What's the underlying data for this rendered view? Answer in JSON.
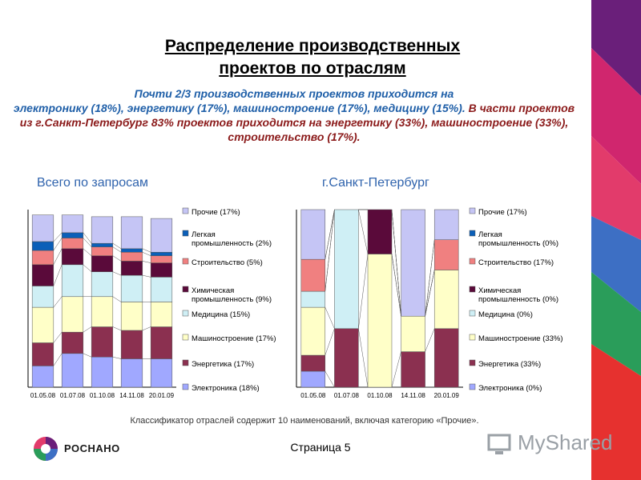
{
  "slide": {
    "title_line1": "Распределение производственных",
    "title_line2": "проектов по отраслям",
    "summary_blue1": "Почти 2/3 производственных проектов приходится на",
    "summary_blue2": "электронику (18%), энергетику (17%), машиностроение (17%), медицину (15%).",
    "summary_red": "В части проектов из г.Санкт-Петербург 83% проектов приходится на энергетику (33%), машиностроение (33%), строительство (17%).",
    "footnote": "Классификатор отраслей содержит 10 наименований, включая категорию «Прочие».",
    "page": "Страница 5",
    "logo_text": "РОСНАНО",
    "watermark": "MyShared"
  },
  "colors": {
    "Прочие": "#c5c5f5",
    "Легкая промышленность": "#0b5fb8",
    "Строительство": "#f08080",
    "Химическая промышленность": "#5a0a3a",
    "Медицина": "#cfeff5",
    "Машиностроение": "#ffffc8",
    "Энергетика": "#8b3050",
    "Электроника": "#a0a8ff"
  },
  "chart_data": [
    {
      "type": "bar",
      "stacked": true,
      "title": "Всего по запросам",
      "categories": [
        "01.05.08",
        "01.07.08",
        "01.10.08",
        "14.11.08",
        "20.01.09"
      ],
      "series": [
        {
          "name": "Электроника",
          "values": [
            12,
            19,
            17,
            16,
            16
          ]
        },
        {
          "name": "Энергетика",
          "values": [
            13,
            12,
            17,
            16,
            18
          ]
        },
        {
          "name": "Машиностроение",
          "values": [
            20,
            20,
            17,
            16,
            14
          ]
        },
        {
          "name": "Медицина",
          "values": [
            12,
            18,
            14,
            15,
            14
          ]
        },
        {
          "name": "Химическая промышленность",
          "values": [
            12,
            9,
            9,
            8,
            8
          ]
        },
        {
          "name": "Строительство",
          "values": [
            8,
            6,
            5,
            5,
            4
          ]
        },
        {
          "name": "Легкая промышленность",
          "values": [
            5,
            3,
            2,
            2,
            2
          ]
        },
        {
          "name": "Прочие",
          "values": [
            15,
            10,
            15,
            18,
            19
          ]
        }
      ],
      "legend": [
        "Прочие (17%)",
        "Легкая промышленность (2%)",
        "Строительство (5%)",
        "Химическая промышленность (9%)",
        "Медицина (15%)",
        "Машиностроение (17%)",
        "Энергетика (17%)",
        "Электроника (18%)"
      ],
      "legend_placement": "right",
      "ylim": [
        0,
        100
      ]
    },
    {
      "type": "bar",
      "stacked": true,
      "title": "г.Санкт-Петербург",
      "categories": [
        "01.05.08",
        "01.07.08",
        "01.10.08",
        "14.11.08",
        "20.01.09"
      ],
      "series": [
        {
          "name": "Электроника",
          "values": [
            9,
            0,
            0,
            0,
            0
          ]
        },
        {
          "name": "Энергетика",
          "values": [
            9,
            33,
            0,
            20,
            33
          ]
        },
        {
          "name": "Машиностроение",
          "values": [
            27,
            0,
            75,
            20,
            33
          ]
        },
        {
          "name": "Медицина",
          "values": [
            9,
            67,
            0,
            0,
            0
          ]
        },
        {
          "name": "Химическая промышленность",
          "values": [
            0,
            0,
            25,
            0,
            0
          ]
        },
        {
          "name": "Строительство",
          "values": [
            18,
            0,
            0,
            0,
            17
          ]
        },
        {
          "name": "Легкая промышленность",
          "values": [
            0,
            0,
            0,
            0,
            0
          ]
        },
        {
          "name": "Прочие",
          "values": [
            28,
            0,
            0,
            60,
            17
          ]
        }
      ],
      "legend": [
        "Прочие (17%)",
        "Легкая промышленность (0%)",
        "Строительство (17%)",
        "Химическая промышленность (0%)",
        "Медицина (0%)",
        "Машиностроение (33%)",
        "Энергетика (33%)",
        "Электроника (0%)"
      ],
      "legend_placement": "right",
      "ylim": [
        0,
        100
      ]
    }
  ]
}
